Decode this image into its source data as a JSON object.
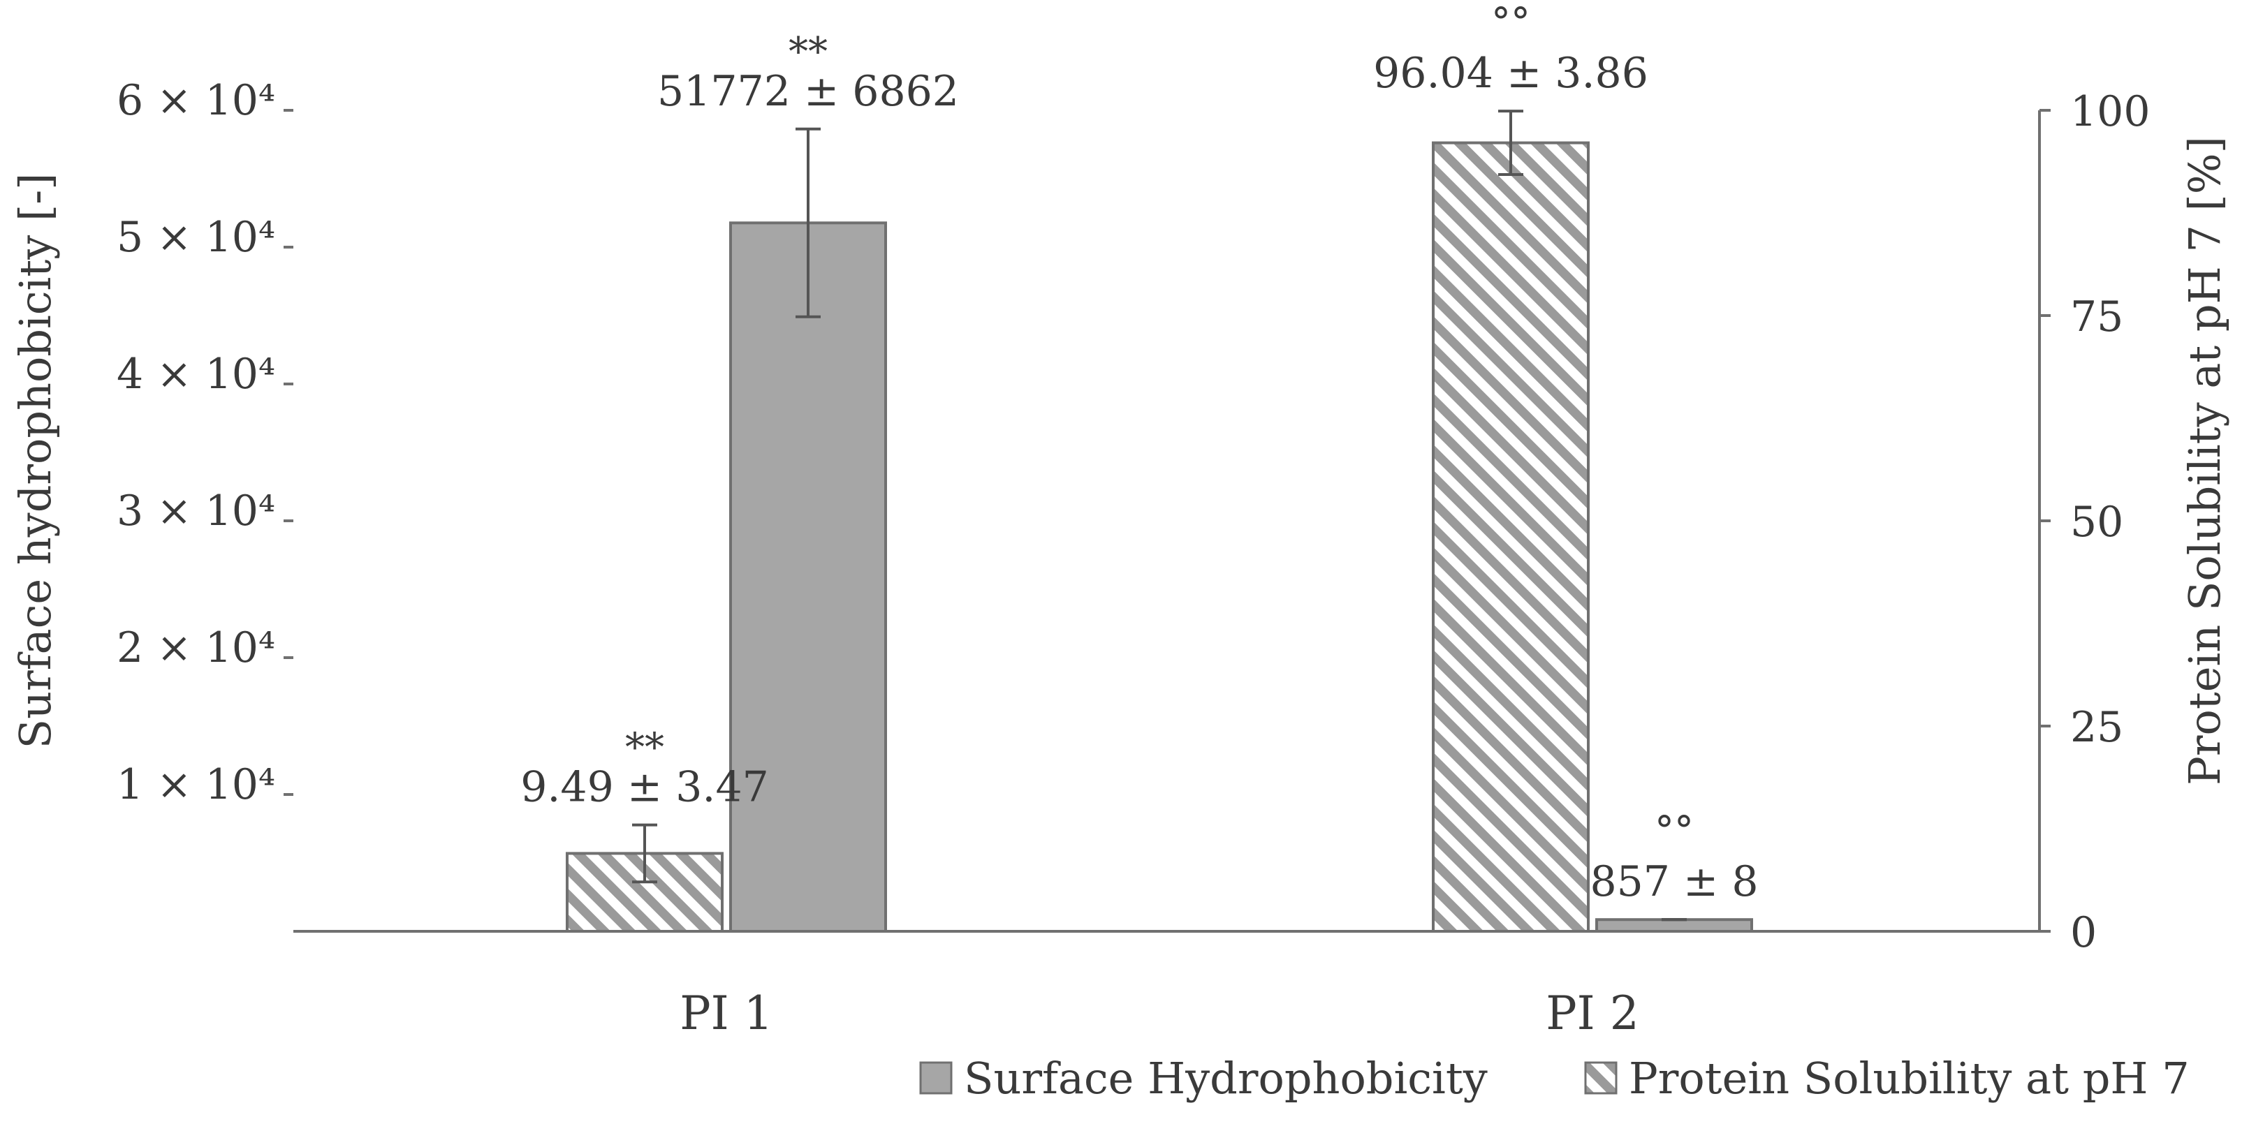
{
  "chart_data": {
    "type": "bar",
    "categories": [
      "PI 1",
      "PI 2"
    ],
    "series": [
      {
        "name": "Surface Hydrophobicity",
        "axis": "left",
        "pattern": "solid",
        "values": [
          51772,
          857
        ],
        "errors": [
          6862,
          8
        ],
        "value_labels": [
          "51772 ± 6862",
          "857 ± 8"
        ],
        "significance": [
          "**",
          "°°"
        ]
      },
      {
        "name": "Protein Solubility at pH 7",
        "axis": "right",
        "pattern": "hatched",
        "values": [
          9.49,
          96.04
        ],
        "errors": [
          3.47,
          3.86
        ],
        "value_labels": [
          "9.49 ± 3.47",
          "96.04 ± 3.86"
        ],
        "significance": [
          "**",
          "°°"
        ]
      }
    ],
    "ylabel": "Surface hydrophobicity [-]",
    "ylabel_right": "Protein Solubility at pH 7 [%]",
    "ylim": [
      0,
      60000
    ],
    "ylim_right": [
      0,
      100
    ],
    "yticks": [
      10000,
      20000,
      30000,
      40000,
      50000,
      60000
    ],
    "ytick_labels": [
      "1 × 10⁴",
      "2 × 10⁴",
      "3 × 10⁴",
      "4 × 10⁴",
      "5 × 10⁴",
      "6 × 10⁴"
    ],
    "yticks_right": [
      0,
      25,
      50,
      75,
      100
    ],
    "ytick_labels_right": [
      "0",
      "25",
      "50",
      "75",
      "100"
    ],
    "grid": false,
    "legend_position": "bottom-right",
    "colors": {
      "solid_fill": "#a6a6a6",
      "bar_stroke": "#707070",
      "hatch": "#9a9a9a",
      "axis": "#707070",
      "text": "#3a3a3a"
    }
  }
}
